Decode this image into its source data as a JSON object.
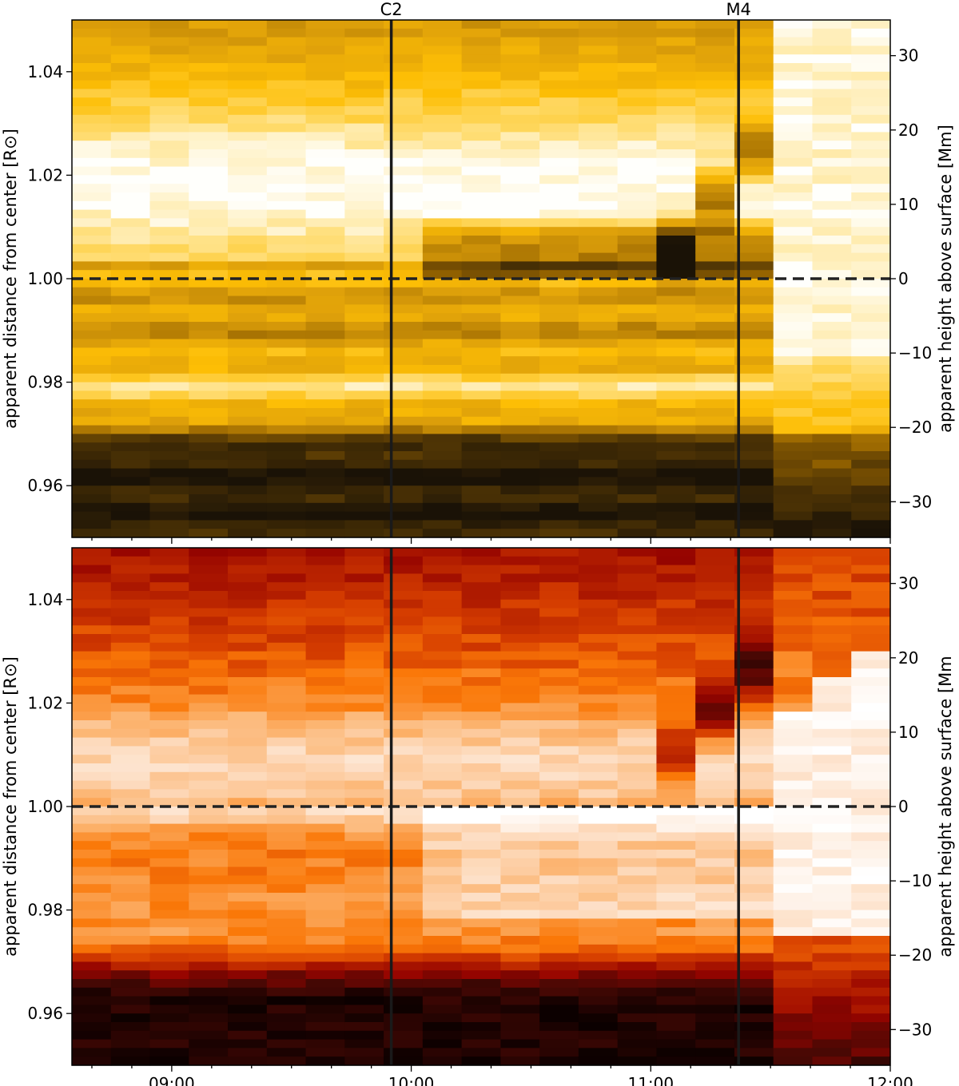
{
  "chart_data": [
    {
      "type": "heatmap",
      "panel": "top",
      "colormap": "sdoaia171-gold",
      "x_ticks": [
        "09:00",
        "10:00",
        "11:00",
        "12:00"
      ],
      "xlim": [
        "08:35",
        "12:00"
      ],
      "ylabel": "apparent distance from center [R⊙]",
      "ylabel_right": "apparent height above surface [Mm]",
      "y_ticks": [
        "0.96",
        "0.98",
        "1.00",
        "1.02",
        "1.04"
      ],
      "y_ticks_right": [
        "−30",
        "−20",
        "−10",
        "0",
        "10",
        "20",
        "30"
      ],
      "ylim": [
        0.95,
        1.05
      ],
      "ylim_right_Mm": [
        -34.8,
        34.8
      ],
      "hline": 1.0,
      "vlines": [
        {
          "label": "C2",
          "time": "09:55"
        },
        {
          "label": "M4",
          "time": "11:22"
        }
      ],
      "grid": false
    },
    {
      "type": "heatmap",
      "panel": "bottom",
      "colormap": "sdoaia304-red",
      "x_ticks": [
        "09:00",
        "10:00",
        "11:00",
        "12:00"
      ],
      "xlim": [
        "08:35",
        "12:00"
      ],
      "ylabel": "apparent distance from center [R⊙]",
      "ylabel_right": "apparent height above surface [Mm",
      "y_ticks": [
        "0.96",
        "0.98",
        "1.00",
        "1.02",
        "1.04"
      ],
      "y_ticks_right": [
        "−30",
        "−20",
        "−10",
        "0",
        "10",
        "20",
        "30"
      ],
      "ylim": [
        0.95,
        1.05
      ],
      "ylim_right_Mm": [
        -34.8,
        34.8
      ],
      "hline": 1.0,
      "vlines": [
        {
          "time": "09:55"
        },
        {
          "time": "11:22"
        }
      ],
      "grid": false
    }
  ]
}
